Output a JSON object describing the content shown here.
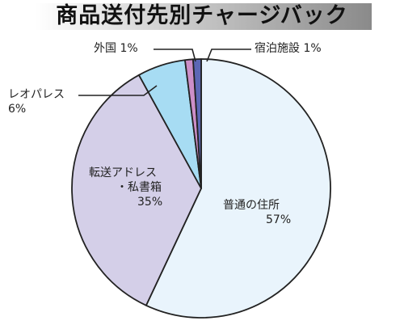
{
  "chart_data": {
    "type": "pie",
    "title": "商品送付先別チャージバック",
    "slices": [
      {
        "label": "普通の住所",
        "label_lines": [
          "普通の住所"
        ],
        "pct_text": "57%",
        "value": 57,
        "color": "#e9f4fc"
      },
      {
        "label": "転送アドレス・私書箱",
        "label_lines": [
          "転送アドレス",
          "・私書箱"
        ],
        "pct_text": "35%",
        "value": 35,
        "color": "#d4cfe8"
      },
      {
        "label": "レオパレス",
        "label_lines": [
          "レオパレス"
        ],
        "pct_text": "6%",
        "value": 6,
        "color": "#a7dcf3"
      },
      {
        "label": "外国",
        "label_lines": [
          "外国"
        ],
        "pct_text": "1%",
        "value": 1,
        "color": "#cc8fc8"
      },
      {
        "label": "宿泊施設",
        "label_lines": [
          "宿泊施設"
        ],
        "pct_text": "1%",
        "value": 1,
        "color": "#5c67b5"
      }
    ]
  }
}
